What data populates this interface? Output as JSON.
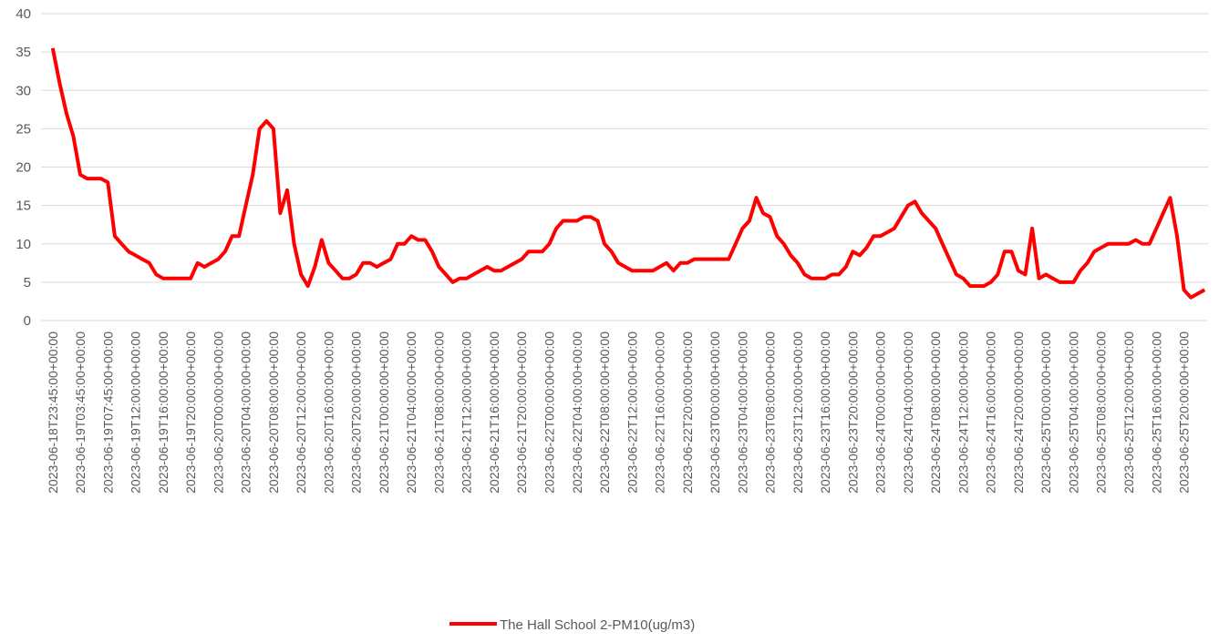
{
  "chart_data": {
    "type": "line",
    "categories": [
      "2023-06-18T23:45:00+00:00",
      null,
      null,
      null,
      "2023-06-19T03:45:00+00:00",
      null,
      null,
      null,
      "2023-06-19T07:45:00+00:00",
      null,
      null,
      null,
      "2023-06-19T12:00:00+00:00",
      null,
      null,
      null,
      "2023-06-19T16:00:00+00:00",
      null,
      null,
      null,
      "2023-06-19T20:00:00+00:00",
      null,
      null,
      null,
      "2023-06-20T00:00:00+00:00",
      null,
      null,
      null,
      "2023-06-20T04:00:00+00:00",
      null,
      null,
      null,
      "2023-06-20T08:00:00+00:00",
      null,
      null,
      null,
      "2023-06-20T12:00:00+00:00",
      null,
      null,
      null,
      "2023-06-20T16:00:00+00:00",
      null,
      null,
      null,
      "2023-06-20T20:00:00+00:00",
      null,
      null,
      null,
      "2023-06-21T00:00:00+00:00",
      null,
      null,
      null,
      "2023-06-21T04:00:00+00:00",
      null,
      null,
      null,
      "2023-06-21T08:00:00+00:00",
      null,
      null,
      null,
      "2023-06-21T12:00:00+00:00",
      null,
      null,
      null,
      "2023-06-21T16:00:00+00:00",
      null,
      null,
      null,
      "2023-06-21T20:00:00+00:00",
      null,
      null,
      null,
      "2023-06-22T00:00:00+00:00",
      null,
      null,
      null,
      "2023-06-22T04:00:00+00:00",
      null,
      null,
      null,
      "2023-06-22T08:00:00+00:00",
      null,
      null,
      null,
      "2023-06-22T12:00:00+00:00",
      null,
      null,
      null,
      "2023-06-22T16:00:00+00:00",
      null,
      null,
      null,
      "2023-06-22T20:00:00+00:00",
      null,
      null,
      null,
      "2023-06-23T00:00:00+00:00",
      null,
      null,
      null,
      "2023-06-23T04:00:00+00:00",
      null,
      null,
      null,
      "2023-06-23T08:00:00+00:00",
      null,
      null,
      null,
      "2023-06-23T12:00:00+00:00",
      null,
      null,
      null,
      "2023-06-23T16:00:00+00:00",
      null,
      null,
      null,
      "2023-06-23T20:00:00+00:00",
      null,
      null,
      null,
      "2023-06-24T00:00:00+00:00",
      null,
      null,
      null,
      "2023-06-24T04:00:00+00:00",
      null,
      null,
      null,
      "2023-06-24T08:00:00+00:00",
      null,
      null,
      null,
      "2023-06-24T12:00:00+00:00",
      null,
      null,
      null,
      "2023-06-24T16:00:00+00:00",
      null,
      null,
      null,
      "2023-06-24T20:00:00+00:00",
      null,
      null,
      null,
      "2023-06-25T00:00:00+00:00",
      null,
      null,
      null,
      "2023-06-25T04:00:00+00:00",
      null,
      null,
      null,
      "2023-06-25T08:00:00+00:00",
      null,
      null,
      null,
      "2023-06-25T12:00:00+00:00",
      null,
      null,
      null,
      "2023-06-25T16:00:00+00:00",
      null,
      null,
      null,
      "2023-06-25T20:00:00+00:00",
      null,
      null,
      null
    ],
    "series": [
      {
        "name": "The Hall School 2-PM10(ug/m3)",
        "color": "#ff0000",
        "values": [
          35.5,
          31,
          27,
          24,
          19,
          18.5,
          18.5,
          18.5,
          18,
          11,
          10,
          9,
          8.5,
          8,
          7.5,
          6,
          5.5,
          5.5,
          5.5,
          5.5,
          5.5,
          7.5,
          7,
          7.5,
          8,
          9,
          11,
          11,
          15,
          19,
          25,
          26,
          25,
          14,
          17,
          10,
          6,
          4.5,
          7,
          10.5,
          7.5,
          6.5,
          5.5,
          5.5,
          6,
          7.5,
          7.5,
          7,
          7.5,
          8,
          10,
          10,
          11,
          10.5,
          10.5,
          9,
          7,
          6,
          5,
          5.5,
          5.5,
          6,
          6.5,
          7,
          6.5,
          6.5,
          7,
          7.5,
          8,
          9,
          9,
          9,
          10,
          12,
          13,
          13,
          13,
          13.5,
          13.5,
          13,
          10,
          9,
          7.5,
          7,
          6.5,
          6.5,
          6.5,
          6.5,
          7,
          7.5,
          6.5,
          7.5,
          7.5,
          8,
          8,
          8,
          8,
          8,
          8,
          10,
          12,
          13,
          16,
          14,
          13.5,
          11,
          10,
          8.5,
          7.5,
          6,
          5.5,
          5.5,
          5.5,
          6,
          6,
          7,
          9,
          8.5,
          9.5,
          11,
          11,
          11.5,
          12,
          13.5,
          15,
          15.5,
          14,
          13,
          12,
          10,
          8,
          6,
          5.5,
          4.5,
          4.5,
          4.5,
          5,
          6,
          9,
          9,
          6.5,
          6,
          12,
          5.5,
          6,
          5.5,
          5,
          5,
          5,
          6.5,
          7.5,
          9,
          9.5,
          10,
          10,
          10,
          10,
          10.5,
          10,
          10,
          12,
          14,
          16,
          11,
          4,
          3,
          3.5,
          4
        ]
      }
    ],
    "ylim": [
      0,
      40
    ],
    "yticks": [
      0,
      5,
      10,
      15,
      20,
      25,
      30,
      35,
      40
    ],
    "grid": true,
    "legend": "bottom"
  }
}
